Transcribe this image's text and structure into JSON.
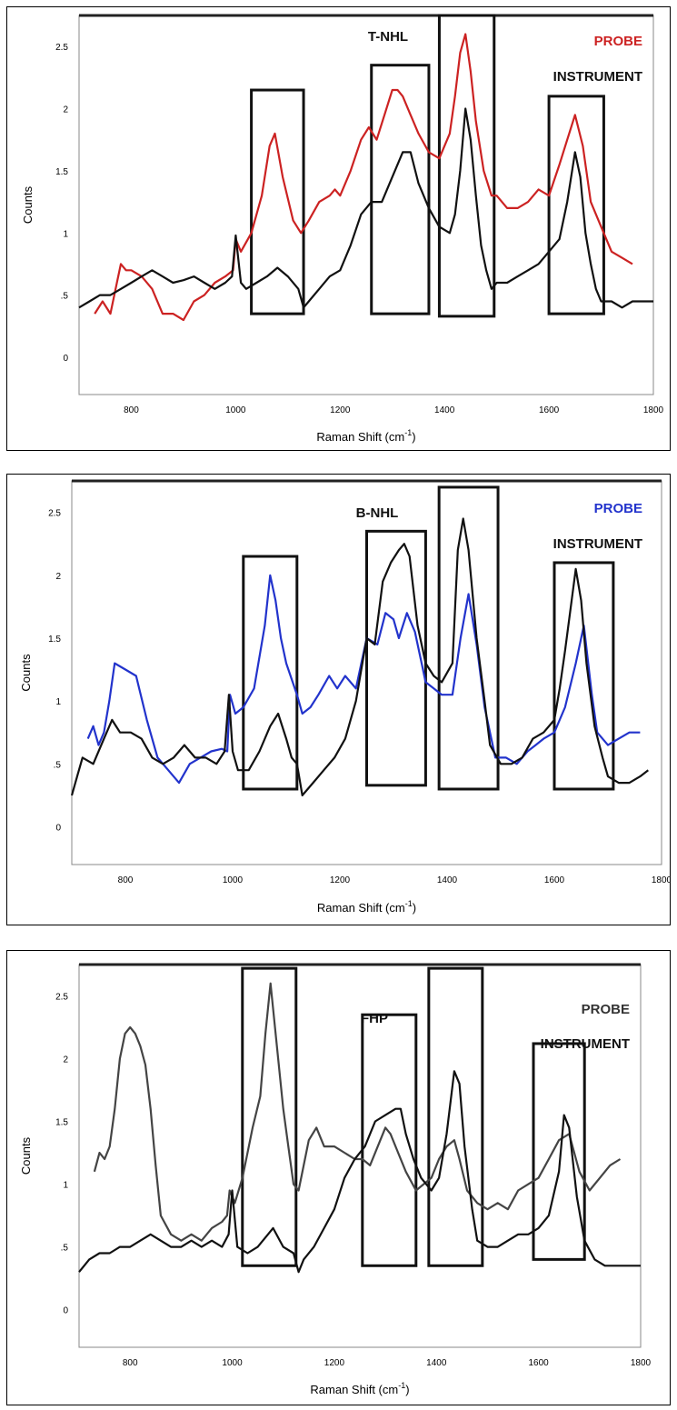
{
  "chart_data": [
    {
      "type": "line",
      "title": "T-NHL",
      "ylabel": "Counts",
      "xlabel_main": "Raman Shift (cm",
      "xlabel_sup": "-1",
      "xlabel_close": ")",
      "xlim": [
        700,
        1800
      ],
      "ylim": [
        -0.3,
        2.75
      ],
      "x_ticks": [
        800,
        1000,
        1200,
        1400,
        1600,
        1800
      ],
      "y_ticks": [
        {
          "value": 0,
          "label": "0"
        },
        {
          "value": 0.5,
          "label": ".5"
        },
        {
          "value": 1,
          "label": "1"
        },
        {
          "value": 1.5,
          "label": "1.5"
        },
        {
          "value": 2,
          "label": "2"
        },
        {
          "value": 2.5,
          "label": "2.5"
        }
      ],
      "legend": [
        {
          "label": "PROBE",
          "color": "#cc2222"
        },
        {
          "label": "INSTRUMENT",
          "color": "#111111"
        }
      ],
      "highlight_boxes": [
        {
          "x": [
            1030,
            1130
          ],
          "y": [
            0.35,
            2.15
          ]
        },
        {
          "x": [
            1260,
            1370
          ],
          "y": [
            0.35,
            2.35
          ]
        },
        {
          "x": [
            1390,
            1495
          ],
          "y": [
            0.33,
            2.75
          ]
        },
        {
          "x": [
            1600,
            1705
          ],
          "y": [
            0.35,
            2.1
          ]
        }
      ],
      "series": [
        {
          "color": "#cc2222",
          "x": [
            730,
            745,
            760,
            770,
            780,
            790,
            800,
            820,
            840,
            860,
            880,
            900,
            920,
            940,
            960,
            980,
            995,
            1000,
            1010,
            1030,
            1050,
            1065,
            1075,
            1090,
            1110,
            1125,
            1140,
            1160,
            1180,
            1190,
            1200,
            1220,
            1240,
            1255,
            1270,
            1285,
            1300,
            1310,
            1320,
            1335,
            1350,
            1370,
            1390,
            1410,
            1420,
            1430,
            1440,
            1450,
            1460,
            1475,
            1490,
            1500,
            1520,
            1540,
            1560,
            1570,
            1580,
            1600,
            1620,
            1635,
            1650,
            1665,
            1680,
            1700,
            1720,
            1740,
            1760
          ],
          "y": [
            0.35,
            0.45,
            0.35,
            0.55,
            0.75,
            0.7,
            0.7,
            0.65,
            0.55,
            0.35,
            0.35,
            0.3,
            0.45,
            0.5,
            0.6,
            0.65,
            0.7,
            0.95,
            0.85,
            1.0,
            1.3,
            1.7,
            1.8,
            1.45,
            1.1,
            1.0,
            1.1,
            1.25,
            1.3,
            1.35,
            1.3,
            1.5,
            1.75,
            1.85,
            1.75,
            1.95,
            2.15,
            2.15,
            2.1,
            1.95,
            1.8,
            1.65,
            1.6,
            1.8,
            2.1,
            2.45,
            2.6,
            2.3,
            1.9,
            1.5,
            1.3,
            1.3,
            1.2,
            1.2,
            1.25,
            1.3,
            1.35,
            1.3,
            1.55,
            1.75,
            1.95,
            1.7,
            1.25,
            1.05,
            0.85,
            0.8,
            0.75
          ]
        },
        {
          "color": "#111111",
          "x": [
            700,
            720,
            740,
            760,
            780,
            800,
            820,
            840,
            860,
            880,
            900,
            920,
            940,
            960,
            980,
            993,
            1000,
            1010,
            1020,
            1040,
            1060,
            1080,
            1100,
            1120,
            1130,
            1140,
            1160,
            1180,
            1200,
            1220,
            1240,
            1260,
            1280,
            1300,
            1320,
            1335,
            1350,
            1370,
            1390,
            1410,
            1420,
            1430,
            1440,
            1450,
            1460,
            1470,
            1480,
            1490,
            1500,
            1520,
            1540,
            1560,
            1580,
            1600,
            1620,
            1635,
            1650,
            1660,
            1670,
            1680,
            1690,
            1700,
            1720,
            1740,
            1760,
            1780,
            1800
          ],
          "y": [
            0.4,
            0.45,
            0.5,
            0.5,
            0.55,
            0.6,
            0.65,
            0.7,
            0.65,
            0.6,
            0.62,
            0.65,
            0.6,
            0.55,
            0.6,
            0.65,
            0.98,
            0.6,
            0.55,
            0.6,
            0.65,
            0.72,
            0.65,
            0.55,
            0.4,
            0.45,
            0.55,
            0.65,
            0.7,
            0.9,
            1.15,
            1.25,
            1.25,
            1.45,
            1.65,
            1.65,
            1.4,
            1.2,
            1.05,
            1.0,
            1.15,
            1.5,
            2.0,
            1.75,
            1.3,
            0.9,
            0.7,
            0.55,
            0.6,
            0.6,
            0.65,
            0.7,
            0.75,
            0.85,
            0.95,
            1.25,
            1.65,
            1.45,
            1.0,
            0.75,
            0.55,
            0.45,
            0.45,
            0.4,
            0.45,
            0.45,
            0.45
          ]
        }
      ]
    },
    {
      "type": "line",
      "title": "B-NHL",
      "ylabel": "Counts",
      "xlabel_main": "Raman Shift (cm",
      "xlabel_sup": "-1",
      "xlabel_close": ")",
      "xlim": [
        700,
        1800
      ],
      "ylim": [
        -0.3,
        2.75
      ],
      "x_ticks": [
        800,
        1000,
        1200,
        1400,
        1600,
        1800
      ],
      "y_ticks": [
        {
          "value": 0,
          "label": "0"
        },
        {
          "value": 0.5,
          "label": ".5"
        },
        {
          "value": 1,
          "label": "1"
        },
        {
          "value": 1.5,
          "label": "1.5"
        },
        {
          "value": 2,
          "label": "2"
        },
        {
          "value": 2.5,
          "label": "2.5"
        }
      ],
      "legend": [
        {
          "label": "PROBE",
          "color": "#2233cc"
        },
        {
          "label": "INSTRUMENT",
          "color": "#111111"
        }
      ],
      "highlight_boxes": [
        {
          "x": [
            1020,
            1120
          ],
          "y": [
            0.3,
            2.15
          ]
        },
        {
          "x": [
            1250,
            1360
          ],
          "y": [
            0.33,
            2.35
          ]
        },
        {
          "x": [
            1385,
            1495
          ],
          "y": [
            0.3,
            2.7
          ]
        },
        {
          "x": [
            1600,
            1710
          ],
          "y": [
            0.3,
            2.1
          ]
        }
      ],
      "series": [
        {
          "color": "#2233cc",
          "x": [
            730,
            740,
            750,
            760,
            770,
            780,
            800,
            820,
            840,
            860,
            880,
            900,
            920,
            940,
            960,
            980,
            990,
            995,
            1005,
            1020,
            1040,
            1060,
            1070,
            1080,
            1090,
            1100,
            1120,
            1130,
            1145,
            1160,
            1180,
            1195,
            1210,
            1230,
            1250,
            1270,
            1285,
            1300,
            1310,
            1325,
            1340,
            1360,
            1375,
            1390,
            1410,
            1425,
            1440,
            1455,
            1470,
            1490,
            1510,
            1530,
            1550,
            1565,
            1580,
            1600,
            1620,
            1640,
            1655,
            1670,
            1680,
            1700,
            1720,
            1740,
            1760
          ],
          "y": [
            0.7,
            0.8,
            0.65,
            0.75,
            1.0,
            1.3,
            1.25,
            1.2,
            0.85,
            0.55,
            0.45,
            0.35,
            0.5,
            0.55,
            0.6,
            0.62,
            0.6,
            1.05,
            0.9,
            0.95,
            1.1,
            1.6,
            2.0,
            1.8,
            1.5,
            1.3,
            1.05,
            0.9,
            0.95,
            1.05,
            1.2,
            1.1,
            1.2,
            1.1,
            1.5,
            1.45,
            1.7,
            1.65,
            1.5,
            1.7,
            1.55,
            1.15,
            1.1,
            1.05,
            1.05,
            1.5,
            1.85,
            1.45,
            0.95,
            0.55,
            0.55,
            0.5,
            0.6,
            0.65,
            0.7,
            0.75,
            0.95,
            1.3,
            1.6,
            1.05,
            0.75,
            0.65,
            0.7,
            0.75,
            0.75
          ]
        },
        {
          "color": "#111111",
          "x": [
            700,
            710,
            720,
            740,
            760,
            775,
            790,
            810,
            830,
            850,
            870,
            890,
            910,
            930,
            950,
            970,
            985,
            993,
            1000,
            1010,
            1030,
            1050,
            1070,
            1085,
            1100,
            1110,
            1120,
            1130,
            1150,
            1170,
            1190,
            1210,
            1230,
            1250,
            1265,
            1280,
            1295,
            1310,
            1320,
            1330,
            1345,
            1360,
            1375,
            1390,
            1410,
            1420,
            1430,
            1440,
            1455,
            1470,
            1480,
            1500,
            1520,
            1540,
            1560,
            1580,
            1600,
            1610,
            1620,
            1640,
            1650,
            1660,
            1675,
            1690,
            1700,
            1720,
            1740,
            1760,
            1775
          ],
          "y": [
            0.25,
            0.4,
            0.55,
            0.5,
            0.7,
            0.85,
            0.75,
            0.75,
            0.7,
            0.55,
            0.5,
            0.55,
            0.65,
            0.55,
            0.55,
            0.5,
            0.6,
            1.05,
            0.6,
            0.45,
            0.45,
            0.6,
            0.8,
            0.9,
            0.7,
            0.55,
            0.5,
            0.25,
            0.35,
            0.45,
            0.55,
            0.7,
            1.0,
            1.5,
            1.45,
            1.95,
            2.1,
            2.2,
            2.25,
            2.15,
            1.6,
            1.3,
            1.2,
            1.15,
            1.3,
            2.2,
            2.45,
            2.2,
            1.5,
            1.0,
            0.65,
            0.5,
            0.5,
            0.55,
            0.7,
            0.75,
            0.85,
            1.1,
            1.4,
            2.05,
            1.8,
            1.3,
            0.8,
            0.55,
            0.4,
            0.35,
            0.35,
            0.4,
            0.45
          ]
        }
      ]
    },
    {
      "type": "line",
      "title": "FHP",
      "ylabel": "Counts",
      "xlabel_main": "Raman Shift (cm",
      "xlabel_sup": "-1",
      "xlabel_close": ")",
      "xlim": [
        700,
        1800
      ],
      "ylim": [
        -0.3,
        2.75
      ],
      "x_ticks": [
        800,
        1000,
        1200,
        1400,
        1600,
        1800
      ],
      "y_ticks": [
        {
          "value": 0,
          "label": "0"
        },
        {
          "value": 0.5,
          "label": ".5"
        },
        {
          "value": 1,
          "label": "1"
        },
        {
          "value": 1.5,
          "label": "1.5"
        },
        {
          "value": 2,
          "label": "2"
        },
        {
          "value": 2.5,
          "label": "2.5"
        }
      ],
      "legend": [
        {
          "label": "PROBE",
          "color": "#333333"
        },
        {
          "label": "INSTRUMENT",
          "color": "#111111"
        }
      ],
      "highlight_boxes": [
        {
          "x": [
            1020,
            1125
          ],
          "y": [
            0.35,
            2.72
          ]
        },
        {
          "x": [
            1255,
            1360
          ],
          "y": [
            0.35,
            2.35
          ]
        },
        {
          "x": [
            1385,
            1490
          ],
          "y": [
            0.35,
            2.72
          ]
        },
        {
          "x": [
            1590,
            1690
          ],
          "y": [
            0.4,
            2.12
          ]
        }
      ],
      "series": [
        {
          "color": "#444444",
          "x": [
            730,
            740,
            750,
            760,
            770,
            780,
            790,
            800,
            810,
            820,
            830,
            840,
            850,
            860,
            880,
            900,
            920,
            940,
            960,
            980,
            990,
            995,
            1005,
            1020,
            1040,
            1055,
            1065,
            1075,
            1090,
            1100,
            1110,
            1120,
            1130,
            1140,
            1150,
            1165,
            1180,
            1200,
            1220,
            1240,
            1255,
            1270,
            1285,
            1300,
            1310,
            1325,
            1340,
            1360,
            1375,
            1390,
            1405,
            1420,
            1435,
            1445,
            1460,
            1480,
            1500,
            1520,
            1540,
            1560,
            1580,
            1600,
            1620,
            1640,
            1660,
            1680,
            1700,
            1720,
            1740,
            1760
          ],
          "y": [
            1.1,
            1.25,
            1.2,
            1.3,
            1.6,
            2.0,
            2.2,
            2.25,
            2.2,
            2.1,
            1.95,
            1.6,
            1.15,
            0.75,
            0.6,
            0.55,
            0.6,
            0.55,
            0.65,
            0.7,
            0.75,
            0.95,
            0.85,
            1.05,
            1.45,
            1.7,
            2.2,
            2.6,
            2.0,
            1.6,
            1.3,
            1.0,
            0.95,
            1.15,
            1.35,
            1.45,
            1.3,
            1.3,
            1.25,
            1.2,
            1.2,
            1.15,
            1.3,
            1.45,
            1.4,
            1.25,
            1.1,
            0.95,
            1.0,
            1.05,
            1.2,
            1.3,
            1.35,
            1.2,
            0.95,
            0.85,
            0.8,
            0.85,
            0.8,
            0.95,
            1.0,
            1.05,
            1.2,
            1.35,
            1.4,
            1.1,
            0.95,
            1.05,
            1.15,
            1.2
          ]
        },
        {
          "color": "#111111",
          "x": [
            700,
            720,
            740,
            760,
            780,
            800,
            820,
            840,
            860,
            880,
            900,
            920,
            940,
            960,
            980,
            993,
            1000,
            1010,
            1030,
            1050,
            1070,
            1080,
            1100,
            1120,
            1130,
            1140,
            1160,
            1180,
            1200,
            1220,
            1240,
            1260,
            1280,
            1300,
            1320,
            1330,
            1340,
            1355,
            1370,
            1390,
            1405,
            1420,
            1435,
            1445,
            1455,
            1470,
            1480,
            1500,
            1520,
            1540,
            1560,
            1580,
            1600,
            1620,
            1640,
            1650,
            1660,
            1675,
            1690,
            1710,
            1730,
            1750,
            1770,
            1790,
            1800
          ],
          "y": [
            0.3,
            0.4,
            0.45,
            0.45,
            0.5,
            0.5,
            0.55,
            0.6,
            0.55,
            0.5,
            0.5,
            0.55,
            0.5,
            0.55,
            0.5,
            0.6,
            0.95,
            0.5,
            0.45,
            0.5,
            0.6,
            0.65,
            0.5,
            0.45,
            0.3,
            0.4,
            0.5,
            0.65,
            0.8,
            1.05,
            1.2,
            1.3,
            1.5,
            1.55,
            1.6,
            1.6,
            1.4,
            1.2,
            1.05,
            0.95,
            1.05,
            1.4,
            1.9,
            1.8,
            1.3,
            0.8,
            0.55,
            0.5,
            0.5,
            0.55,
            0.6,
            0.6,
            0.65,
            0.75,
            1.1,
            1.55,
            1.45,
            0.9,
            0.55,
            0.4,
            0.35,
            0.35,
            0.35,
            0.35,
            0.35
          ]
        }
      ]
    }
  ]
}
